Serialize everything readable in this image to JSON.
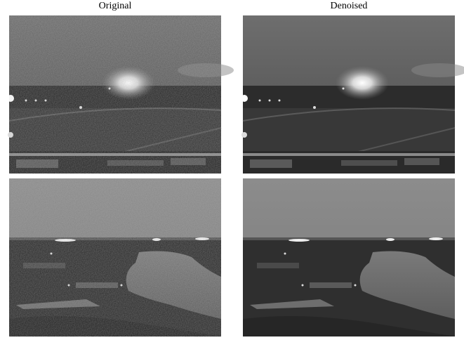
{
  "columns": [
    "Original",
    "Denoised"
  ]
}
